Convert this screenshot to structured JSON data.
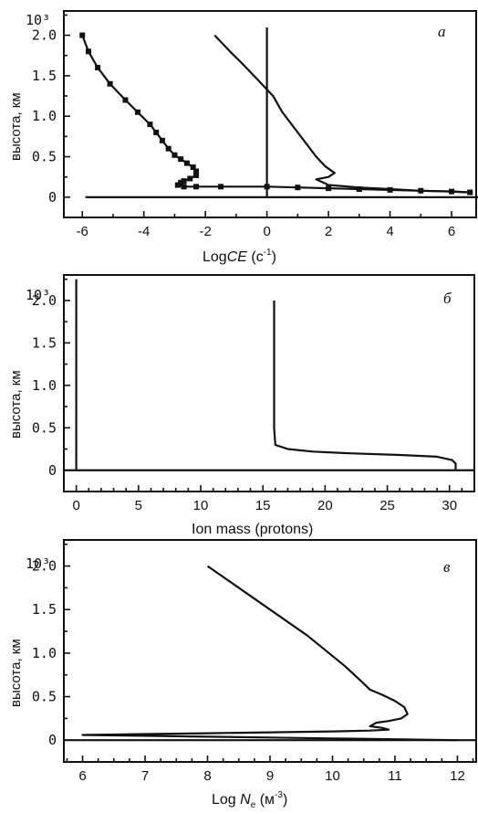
{
  "chart_data": [
    {
      "type": "line",
      "letter": "а",
      "ylabel": "высота, км",
      "y_exponent": "10³",
      "y_ticks": [
        "0",
        "0.5",
        "1.0",
        "1.5",
        "2.0"
      ],
      "y_tick_values": [
        0,
        0.5,
        1.0,
        1.5,
        2.0
      ],
      "xlabel_pre": "Log",
      "xlabel_ital": "CE",
      "xlabel_post": " (c",
      "xlabel_sup": "-1",
      "xlabel_close": ")",
      "x_ticks": [
        "-6",
        "-4",
        "-2",
        "0",
        "2",
        "4",
        "6"
      ],
      "x_tick_values": [
        -6,
        -4,
        -2,
        0,
        2,
        4,
        6
      ],
      "xlim": [
        -6.6,
        6.8
      ],
      "ylim": [
        -0.25,
        2.3
      ],
      "vertical_line_x": 0,
      "baseline": {
        "x": [
          -5.9,
          6.9
        ],
        "y": [
          0,
          0
        ]
      },
      "series": [
        {
          "markers": true,
          "x": [
            -6.0,
            -5.8,
            -5.5,
            -5.1,
            -4.6,
            -4.2,
            -3.8,
            -3.6,
            -3.4,
            -3.2,
            -3.0,
            -2.8,
            -2.6,
            -2.4,
            -2.3,
            -2.3,
            -2.5,
            -2.7,
            -2.8,
            -2.9,
            -2.7,
            -2.3,
            -1.5,
            0.0,
            1.0,
            2.0,
            3.0,
            4.0,
            5.0,
            6.0,
            6.6
          ],
          "y": [
            2.0,
            1.8,
            1.6,
            1.4,
            1.2,
            1.05,
            0.9,
            0.8,
            0.7,
            0.6,
            0.52,
            0.47,
            0.42,
            0.37,
            0.32,
            0.27,
            0.23,
            0.2,
            0.18,
            0.15,
            0.13,
            0.13,
            0.13,
            0.13,
            0.12,
            0.11,
            0.1,
            0.09,
            0.08,
            0.07,
            0.06
          ]
        },
        {
          "markers": false,
          "x": [
            -1.7,
            -1.2,
            -0.8,
            -0.3,
            0.2,
            0.5,
            0.9,
            1.3,
            1.6,
            1.9,
            2.2,
            2.0,
            1.6,
            2.0,
            3.0,
            4.0,
            5.0,
            6.0,
            6.5
          ],
          "y": [
            2.0,
            1.8,
            1.65,
            1.45,
            1.25,
            1.05,
            0.85,
            0.65,
            0.5,
            0.38,
            0.3,
            0.25,
            0.22,
            0.15,
            0.12,
            0.1,
            0.08,
            0.07,
            0.06
          ]
        }
      ]
    },
    {
      "type": "line",
      "letter": "б",
      "ylabel": "высота, км",
      "y_exponent": "10³",
      "y_ticks": [
        "0",
        "0.5",
        "1.0",
        "1.5",
        "2.0"
      ],
      "y_tick_values": [
        0,
        0.5,
        1.0,
        1.5,
        2.0
      ],
      "xlabel": "Ion mass (protons)",
      "x_ticks": [
        "0",
        "5",
        "10",
        "15",
        "20",
        "25",
        "30"
      ],
      "x_tick_values": [
        0,
        5,
        10,
        15,
        20,
        25,
        30
      ],
      "x_minor_step": 1,
      "xlim": [
        -1,
        32
      ],
      "ylim": [
        -0.25,
        2.3
      ],
      "baseline": {
        "x": [
          -1,
          32
        ],
        "y": [
          0,
          0
        ]
      },
      "series": [
        {
          "x": [
            0,
            0
          ],
          "y": [
            2.25,
            0
          ]
        },
        {
          "x": [
            15.9,
            15.9,
            16.0,
            17.0,
            19.0,
            22.0,
            26.0,
            29.0,
            30.2,
            30.5,
            30.5
          ],
          "y": [
            2.0,
            0.5,
            0.3,
            0.25,
            0.22,
            0.2,
            0.18,
            0.16,
            0.12,
            0.08,
            0.0
          ]
        }
      ]
    },
    {
      "type": "line",
      "letter": "в",
      "ylabel": "высота, км",
      "y_exponent": "10³",
      "y_ticks": [
        "0",
        "0.5",
        "1.0",
        "1.5",
        "2.0"
      ],
      "y_tick_values": [
        0,
        0.5,
        1.0,
        1.5,
        2.0
      ],
      "xlabel_pre": "Log ",
      "xlabel_ital": "N",
      "xlabel_sub": "e",
      "xlabel_post": " (м",
      "xlabel_sup": "-3",
      "xlabel_close": ")",
      "x_ticks": [
        "6",
        "7",
        "8",
        "9",
        "10",
        "11",
        "12"
      ],
      "x_tick_values": [
        6,
        7,
        8,
        9,
        10,
        11,
        12
      ],
      "x_minor_step": 0.25,
      "xlim": [
        5.7,
        12.3
      ],
      "ylim": [
        -0.25,
        2.3
      ],
      "baseline": {
        "x": [
          5.7,
          12.3
        ],
        "y": [
          0,
          0
        ]
      },
      "series": [
        {
          "x": [
            8.0,
            8.8,
            9.6,
            10.2,
            10.5,
            10.6,
            10.8,
            11.0,
            11.15,
            11.2,
            11.1,
            10.9,
            10.7,
            10.6,
            10.8,
            10.9,
            10.6,
            10.0,
            9.0,
            8.0,
            7.0,
            6.0,
            7.0,
            8.0,
            9.0,
            10.0,
            11.0,
            12.0
          ],
          "y": [
            2.0,
            1.6,
            1.2,
            0.85,
            0.65,
            0.58,
            0.52,
            0.45,
            0.38,
            0.3,
            0.25,
            0.22,
            0.2,
            0.16,
            0.14,
            0.12,
            0.11,
            0.1,
            0.09,
            0.08,
            0.07,
            0.06,
            0.05,
            0.04,
            0.03,
            0.02,
            0.01,
            0.0
          ]
        }
      ]
    }
  ]
}
